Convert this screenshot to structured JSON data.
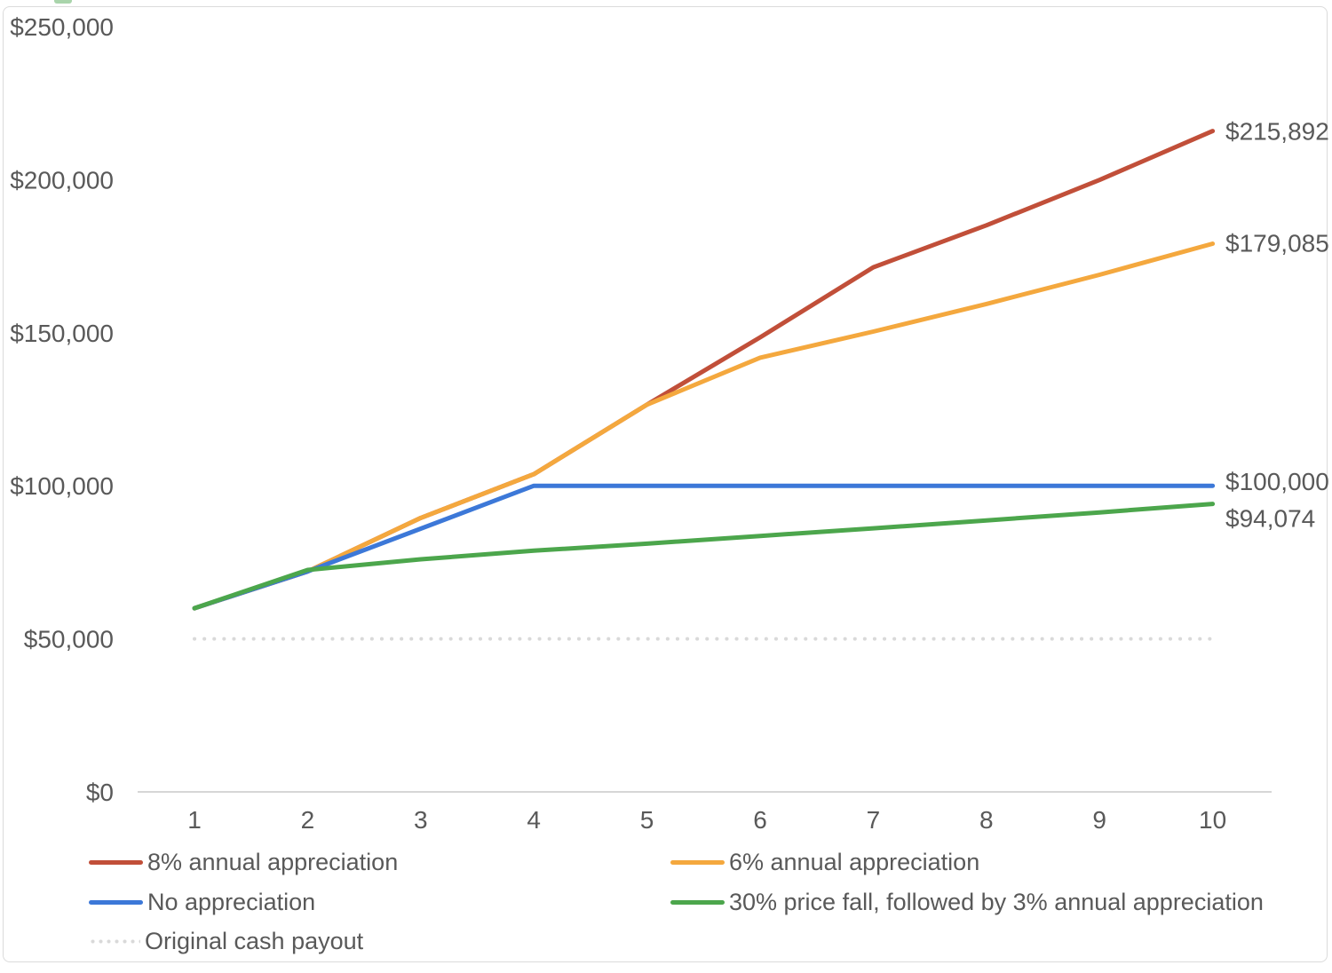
{
  "page": {
    "background": "#FFFFFF",
    "frame_border_color": "#DBDBDB",
    "cropped_fragment_color": "#A9D4AB",
    "text_color": "#595959"
  },
  "chart_data": {
    "type": "line",
    "title": "",
    "xlabel": "",
    "ylabel": "",
    "x": [
      1,
      2,
      3,
      4,
      5,
      6,
      7,
      8,
      9,
      10
    ],
    "x_tick_labels": [
      "1",
      "2",
      "3",
      "4",
      "5",
      "6",
      "7",
      "8",
      "9",
      "10"
    ],
    "ylim": [
      0,
      250000
    ],
    "y_ticks": [
      {
        "value": 0,
        "label": "$0"
      },
      {
        "value": 50000,
        "label": "$50,000"
      },
      {
        "value": 100000,
        "label": "$100,000"
      },
      {
        "value": 150000,
        "label": "$150,000"
      },
      {
        "value": 200000,
        "label": "$200,000"
      },
      {
        "value": 250000,
        "label": "$250,000"
      }
    ],
    "grid": false,
    "legend_position": "bottom-left, two columns",
    "axis_line_color": "#D6D6D6",
    "dotted_line_color": "#D9D9D9",
    "series": [
      {
        "name": "8% annual appreciation",
        "color": "#C14F39",
        "style": "solid",
        "values": [
          60000,
          72000,
          89500,
          103800,
          126500,
          148500,
          171382,
          185093,
          199900,
          215892
        ],
        "end_label": "$215,892",
        "end_label_offset": 0
      },
      {
        "name": "6% annual appreciation",
        "color": "#F4A83E",
        "style": "solid",
        "values": [
          60000,
          72000,
          89500,
          103800,
          126500,
          141852,
          150363,
          159385,
          168948,
          179085
        ],
        "end_label": "$179,085",
        "end_label_offset": -1
      },
      {
        "name": "No appreciation",
        "color": "#3C78D8",
        "style": "solid",
        "values": [
          60000,
          72000,
          86000,
          100000,
          100000,
          100000,
          100000,
          100000,
          100000,
          100000
        ],
        "end_label": "$100,000",
        "end_label_offset": -5
      },
      {
        "name": "30% price fall, followed by 3% annual appreciation",
        "color": "#4CA64C",
        "style": "solid",
        "values": [
          60000,
          72500,
          76000,
          78800,
          81100,
          83600,
          86100,
          88700,
          91300,
          94074
        ],
        "end_label": "$94,074",
        "end_label_offset": 16
      },
      {
        "name": "Original cash payout",
        "color": "#D9D9D9",
        "style": "dotted",
        "values": [
          50000,
          50000,
          50000,
          50000,
          50000,
          50000,
          50000,
          50000,
          50000,
          50000
        ],
        "end_label": null,
        "end_label_offset": 0
      }
    ],
    "legend_layout": [
      [
        0,
        1
      ],
      [
        2,
        3
      ],
      [
        4
      ]
    ]
  }
}
